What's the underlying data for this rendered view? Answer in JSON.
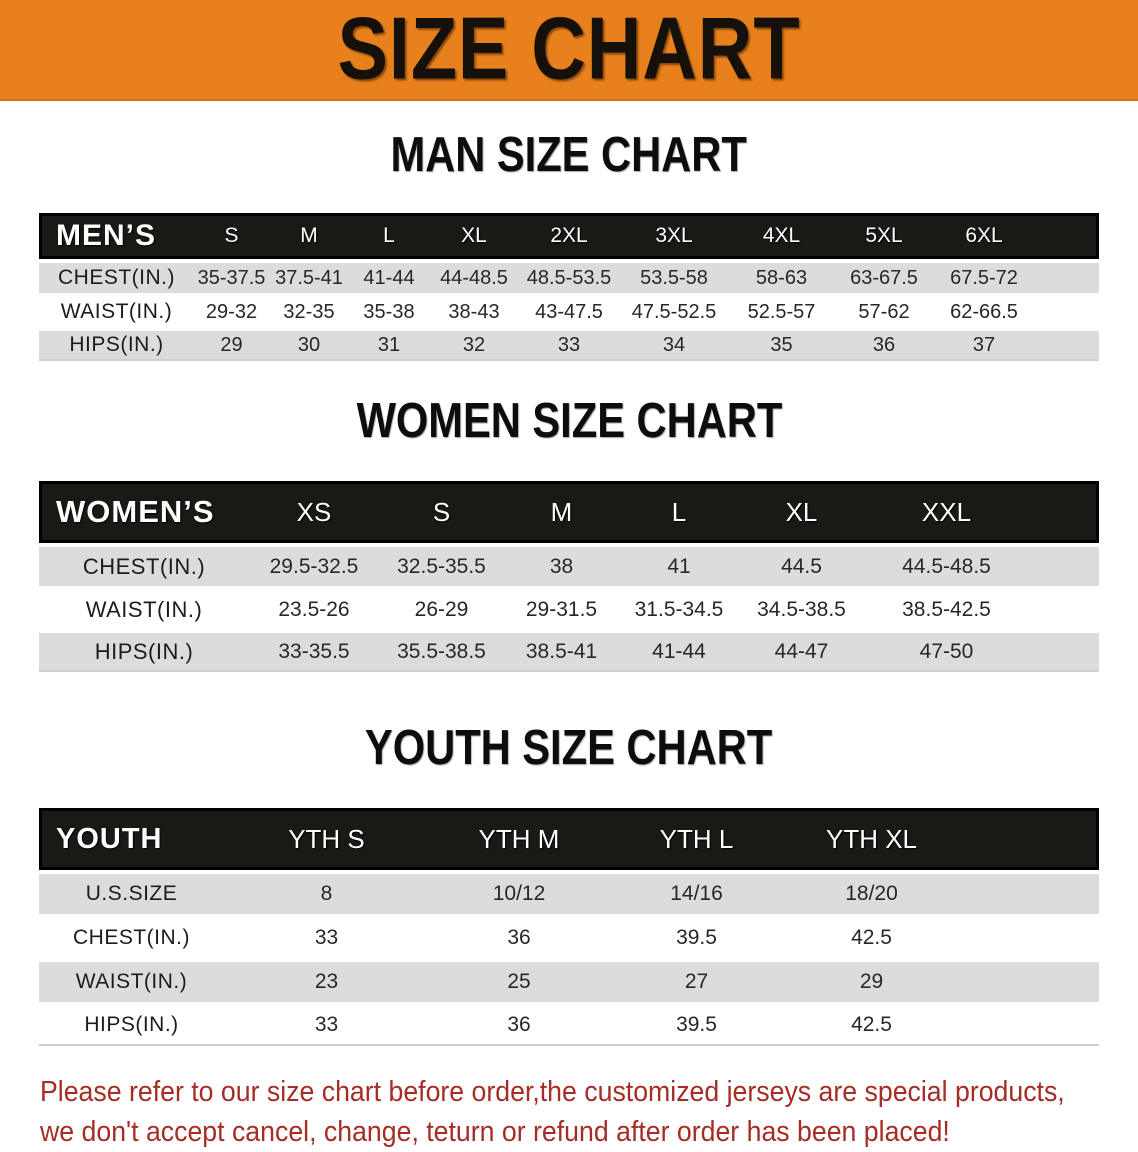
{
  "banner": {
    "title": "SIZE CHART"
  },
  "colors": {
    "banner_bg": "#E8811C",
    "header_bar": "#1B1916",
    "row_alt_grey": "#DCDCDC",
    "disclaimer_red": "#A62C26"
  },
  "sections": {
    "men": {
      "heading": "MAN SIZE CHART",
      "corner_label": "MEN’S",
      "columns": [
        "S",
        "M",
        "L",
        "XL",
        "2XL",
        "3XL",
        "4XL",
        "5XL",
        "6XL"
      ],
      "rows": [
        {
          "label": "CHEST(IN.)",
          "values": [
            "35-37.5",
            "37.5-41",
            "41-44",
            "44-48.5",
            "48.5-53.5",
            "53.5-58",
            "58-63",
            "63-67.5",
            "67.5-72"
          ]
        },
        {
          "label": "WAIST(IN.)",
          "values": [
            "29-32",
            "32-35",
            "35-38",
            "38-43",
            "43-47.5",
            "47.5-52.5",
            "52.5-57",
            "57-62",
            "62-66.5"
          ]
        },
        {
          "label": "HIPS(IN.)",
          "values": [
            "29",
            "30",
            "31",
            "32",
            "33",
            "34",
            "35",
            "36",
            "37"
          ]
        }
      ]
    },
    "women": {
      "heading": "WOMEN SIZE CHART",
      "corner_label": "WOMEN’S",
      "columns": [
        "XS",
        "S",
        "M",
        "L",
        "XL",
        "XXL"
      ],
      "rows": [
        {
          "label": "CHEST(IN.)",
          "values": [
            "29.5-32.5",
            "32.5-35.5",
            "38",
            "41",
            "44.5",
            "44.5-48.5"
          ]
        },
        {
          "label": "WAIST(IN.)",
          "values": [
            "23.5-26",
            "26-29",
            "29-31.5",
            "31.5-34.5",
            "34.5-38.5",
            "38.5-42.5"
          ]
        },
        {
          "label": "HIPS(IN.)",
          "values": [
            "33-35.5",
            "35.5-38.5",
            "38.5-41",
            "41-44",
            "44-47",
            "47-50"
          ]
        }
      ]
    },
    "youth": {
      "heading": "YOUTH SIZE CHART",
      "corner_label": "YOUTH",
      "columns": [
        "YTH S",
        "YTH M",
        "YTH L",
        "YTH XL"
      ],
      "rows": [
        {
          "label": "U.S.SIZE",
          "values": [
            "8",
            "10/12",
            "14/16",
            "18/20"
          ]
        },
        {
          "label": "CHEST(IN.)",
          "values": [
            "33",
            "36",
            "39.5",
            "42.5"
          ]
        },
        {
          "label": "WAIST(IN.)",
          "values": [
            "23",
            "25",
            "27",
            "29"
          ]
        },
        {
          "label": "HIPS(IN.)",
          "values": [
            "33",
            "36",
            "39.5",
            "42.5"
          ]
        }
      ]
    }
  },
  "disclaimer": {
    "line1": "Please refer to our size chart before order,the customized jerseys are special products,",
    "line2": "we don't accept cancel, change, teturn or refund after order has been placed!"
  }
}
